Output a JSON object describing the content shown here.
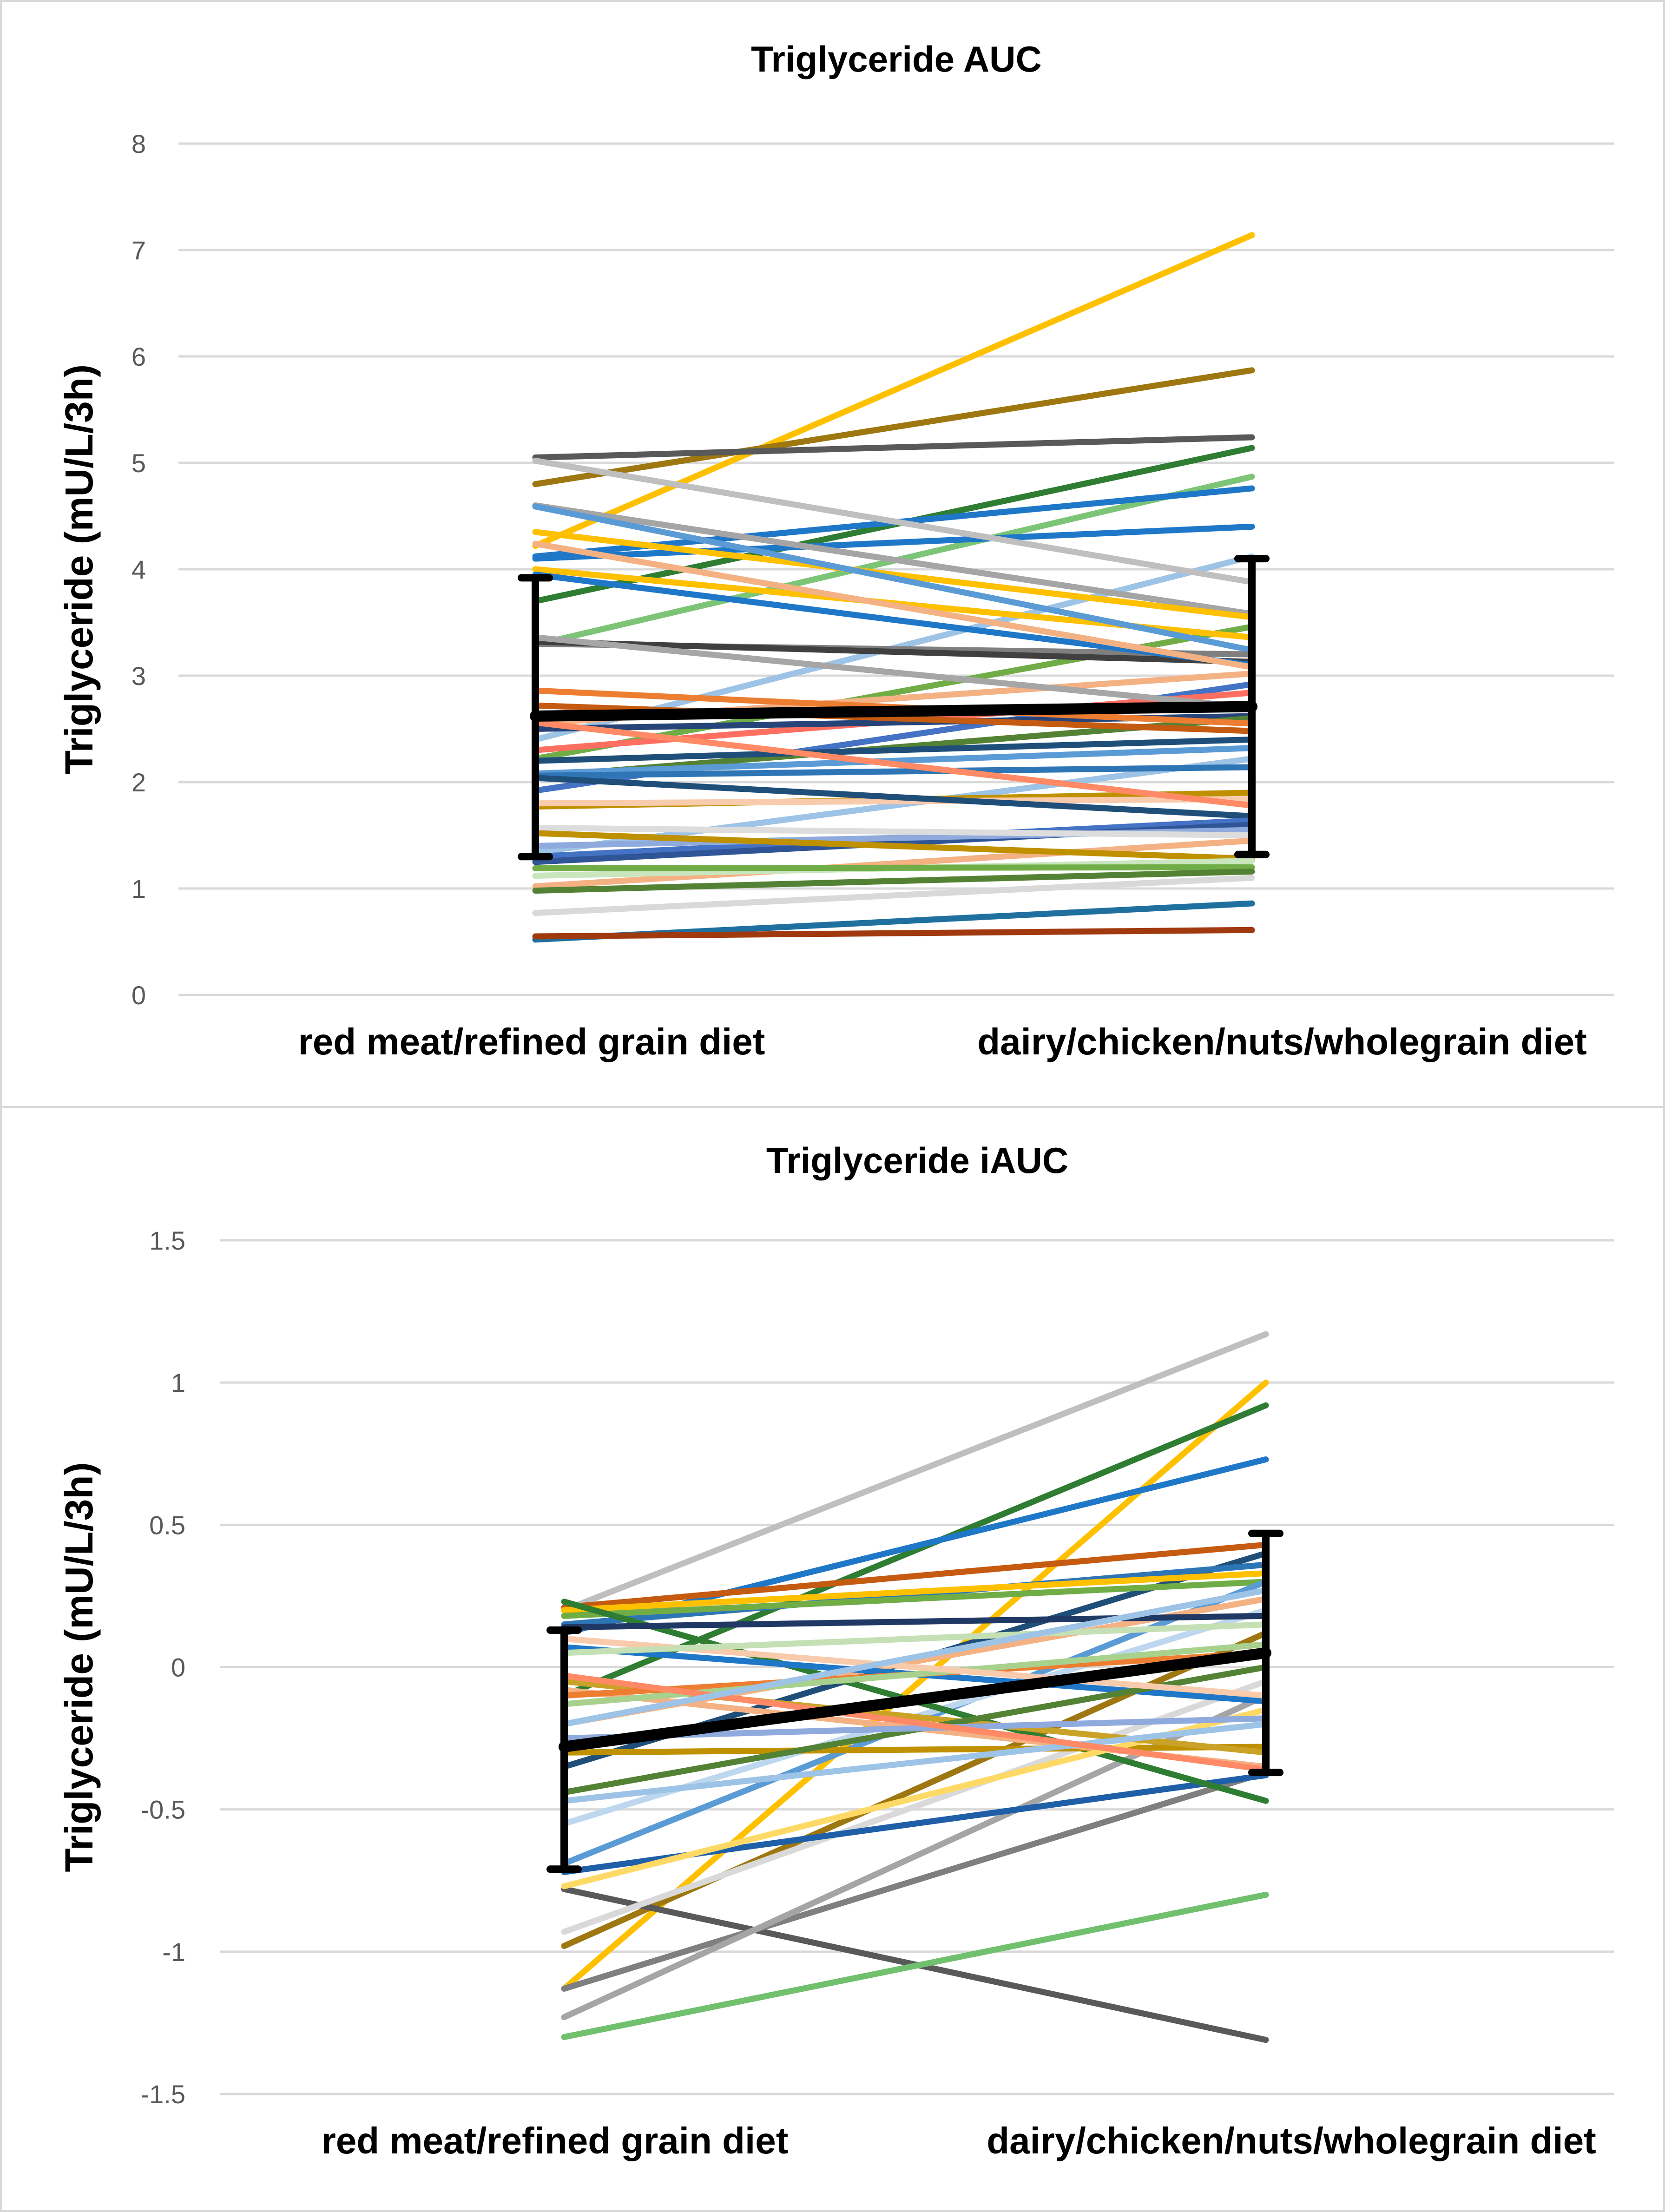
{
  "chart_data": [
    {
      "type": "line",
      "title": "Triglyceride AUC",
      "xlabel": "",
      "ylabel": "Triglyceride (mU/L/3h)",
      "categories": [
        "red meat/refined grain diet",
        "dairy/chicken/nuts/wholegrain diet"
      ],
      "ylim": [
        0,
        8
      ],
      "yticks": [
        0,
        1,
        2,
        3,
        4,
        5,
        6,
        7,
        8
      ],
      "grid": true,
      "mean": [
        2.62,
        2.71
      ],
      "error_bars": {
        "low": [
          1.3,
          1.32
        ],
        "high": [
          3.92,
          4.1
        ]
      },
      "series": [
        {
          "color": "#FFC000",
          "values": [
            4.22,
            7.14
          ]
        },
        {
          "color": "#9E7710",
          "values": [
            4.8,
            5.87
          ]
        },
        {
          "color": "#595959",
          "values": [
            5.05,
            5.24
          ]
        },
        {
          "color": "#2E7D32",
          "values": [
            3.7,
            5.14
          ]
        },
        {
          "color": "#7CC576",
          "values": [
            3.29,
            4.87
          ]
        },
        {
          "color": "#1F77C8",
          "values": [
            4.12,
            4.76
          ]
        },
        {
          "color": "#1F77C8",
          "values": [
            4.1,
            4.4
          ]
        },
        {
          "color": "#9DC3E6",
          "values": [
            2.4,
            4.12
          ]
        },
        {
          "color": "#BFBFBF",
          "values": [
            5.02,
            3.88
          ]
        },
        {
          "color": "#A5A5A5",
          "values": [
            4.6,
            3.58
          ]
        },
        {
          "color": "#FFC000",
          "values": [
            4.35,
            3.55
          ]
        },
        {
          "color": "#70AD47",
          "values": [
            2.22,
            3.46
          ]
        },
        {
          "color": "#FFC000",
          "values": [
            4.0,
            3.36
          ]
        },
        {
          "color": "#5B9BD5",
          "values": [
            4.59,
            3.24
          ]
        },
        {
          "color": "#7F7F7F",
          "values": [
            3.3,
            3.2
          ]
        },
        {
          "color": "#404040",
          "values": [
            3.32,
            3.13
          ]
        },
        {
          "color": "#1F77C8",
          "values": [
            3.95,
            3.1
          ]
        },
        {
          "color": "#F4B183",
          "values": [
            4.24,
            3.08
          ]
        },
        {
          "color": "#F4B183",
          "values": [
            2.55,
            3.02
          ]
        },
        {
          "color": "#4472C4",
          "values": [
            1.92,
            2.92
          ]
        },
        {
          "color": "#FF6F61",
          "values": [
            2.3,
            2.84
          ]
        },
        {
          "color": "#A6A6A6",
          "values": [
            3.36,
            2.7
          ]
        },
        {
          "color": "#264478",
          "values": [
            2.5,
            2.62
          ]
        },
        {
          "color": "#548235",
          "values": [
            2.05,
            2.6
          ]
        },
        {
          "color": "#ED7D31",
          "values": [
            2.86,
            2.55
          ]
        },
        {
          "color": "#C55A11",
          "values": [
            2.72,
            2.48
          ]
        },
        {
          "color": "#1F4E79",
          "values": [
            2.2,
            2.4
          ]
        },
        {
          "color": "#5B9BD5",
          "values": [
            2.08,
            2.32
          ]
        },
        {
          "color": "#9DC3E6",
          "values": [
            1.34,
            2.22
          ]
        },
        {
          "color": "#2E75B6",
          "values": [
            2.06,
            2.14
          ]
        },
        {
          "color": "#BF9000",
          "values": [
            1.77,
            1.9
          ]
        },
        {
          "color": "#F8CBAD",
          "values": [
            1.8,
            1.84
          ]
        },
        {
          "color": "#FF8A65",
          "values": [
            2.56,
            1.78
          ]
        },
        {
          "color": "#1F4E79",
          "values": [
            2.04,
            1.68
          ]
        },
        {
          "color": "#4472C4",
          "values": [
            1.3,
            1.64
          ]
        },
        {
          "color": "#2F5597",
          "values": [
            1.25,
            1.6
          ]
        },
        {
          "color": "#8FAADC",
          "values": [
            1.4,
            1.55
          ]
        },
        {
          "color": "#DDDDDD",
          "values": [
            1.57,
            1.5
          ]
        },
        {
          "color": "#F4B183",
          "values": [
            1.02,
            1.45
          ]
        },
        {
          "color": "#BF9000",
          "values": [
            1.52,
            1.28
          ]
        },
        {
          "color": "#C9E6BE",
          "values": [
            1.12,
            1.26
          ]
        },
        {
          "color": "#70AD47",
          "values": [
            1.19,
            1.2
          ]
        },
        {
          "color": "#548235",
          "values": [
            0.98,
            1.16
          ]
        },
        {
          "color": "#D9D9D9",
          "values": [
            0.77,
            1.1
          ]
        },
        {
          "color": "#1F6F9F",
          "values": [
            0.52,
            0.86
          ]
        },
        {
          "color": "#A0390E",
          "values": [
            0.55,
            0.61
          ]
        }
      ]
    },
    {
      "type": "line",
      "title": "Triglyceride iAUC",
      "xlabel": "",
      "ylabel": "Triglyceride (mU/L/3h)",
      "categories": [
        "red meat/refined grain diet",
        "dairy/chicken/nuts/wholegrain diet"
      ],
      "ylim": [
        -1.5,
        1.5
      ],
      "yticks": [
        -1.5,
        -1,
        -0.5,
        0,
        0.5,
        1,
        1.5
      ],
      "grid": true,
      "mean": [
        -0.28,
        0.05
      ],
      "error_bars": {
        "low": [
          -0.71,
          -0.37
        ],
        "high": [
          0.13,
          0.47
        ]
      },
      "series": [
        {
          "color": "#BFBFBF",
          "values": [
            0.2,
            1.17
          ]
        },
        {
          "color": "#FFC000",
          "values": [
            -1.13,
            1.0
          ]
        },
        {
          "color": "#2E7D32",
          "values": [
            -0.1,
            0.92
          ]
        },
        {
          "color": "#1F77C8",
          "values": [
            0.12,
            0.73
          ]
        },
        {
          "color": "#C55A11",
          "values": [
            0.21,
            0.43
          ]
        },
        {
          "color": "#1F4E79",
          "values": [
            -0.35,
            0.4
          ]
        },
        {
          "color": "#2E75B6",
          "values": [
            0.15,
            0.36
          ]
        },
        {
          "color": "#FFC000",
          "values": [
            0.2,
            0.33
          ]
        },
        {
          "color": "#70AD47",
          "values": [
            0.18,
            0.3
          ]
        },
        {
          "color": "#5B9BD5",
          "values": [
            -0.69,
            0.3
          ]
        },
        {
          "color": "#F4B183",
          "values": [
            -0.2,
            0.24
          ]
        },
        {
          "color": "#BDD7EE",
          "values": [
            -0.55,
            0.2
          ]
        },
        {
          "color": "#9E7710",
          "values": [
            -0.98,
            0.12
          ]
        },
        {
          "color": "#595959",
          "values": [
            -0.78,
            -1.31
          ]
        },
        {
          "color": "#7F7F7F",
          "values": [
            -1.13,
            -0.37
          ]
        },
        {
          "color": "#A5A5A5",
          "values": [
            -1.23,
            -0.1
          ]
        },
        {
          "color": "#D9D9D9",
          "values": [
            -0.93,
            -0.05
          ]
        },
        {
          "color": "#70C06E",
          "values": [
            -1.3,
            -0.8
          ]
        },
        {
          "color": "#1F5FA8",
          "values": [
            -0.72,
            -0.38
          ]
        },
        {
          "color": "#2E7D32",
          "values": [
            0.23,
            -0.47
          ]
        },
        {
          "color": "#BF9000",
          "values": [
            -0.3,
            -0.28
          ]
        },
        {
          "color": "#F4B183",
          "values": [
            -0.08,
            -0.35
          ]
        },
        {
          "color": "#FFD966",
          "values": [
            -0.77,
            -0.15
          ]
        },
        {
          "color": "#C9A227",
          "values": [
            -0.05,
            -0.3
          ]
        },
        {
          "color": "#9DC3E6",
          "values": [
            -0.47,
            -0.2
          ]
        },
        {
          "color": "#1F77C8",
          "values": [
            0.07,
            -0.12
          ]
        },
        {
          "color": "#548235",
          "values": [
            -0.44,
            0.0
          ]
        },
        {
          "color": "#ED7D31",
          "values": [
            -0.1,
            0.05
          ]
        },
        {
          "color": "#A9D18E",
          "values": [
            -0.13,
            0.08
          ]
        },
        {
          "color": "#8FAADC",
          "values": [
            -0.25,
            -0.18
          ]
        },
        {
          "color": "#F8CBAD",
          "values": [
            0.1,
            -0.1
          ]
        },
        {
          "color": "#203864",
          "values": [
            0.14,
            0.18
          ]
        },
        {
          "color": "#FF8A65",
          "values": [
            -0.03,
            -0.36
          ]
        },
        {
          "color": "#C5E0B4",
          "values": [
            0.05,
            0.15
          ]
        },
        {
          "color": "#9DC3E6",
          "values": [
            -0.2,
            0.27
          ]
        }
      ]
    }
  ]
}
